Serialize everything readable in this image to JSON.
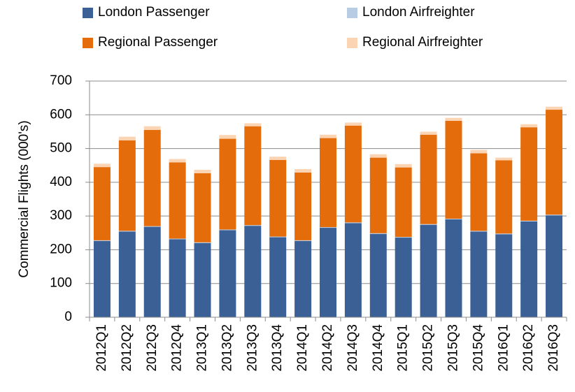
{
  "chart_data": {
    "type": "stacked_bar",
    "y_label": "Commercial Flights (000's)",
    "categories": [
      "2012Q1",
      "2012Q2",
      "2012Q3",
      "2012Q4",
      "2013Q1",
      "2013Q2",
      "2013Q3",
      "2013Q4",
      "2014Q1",
      "2014Q2",
      "2014Q3",
      "2014Q4",
      "2015Q1",
      "2015Q2",
      "2015Q3",
      "2015Q4",
      "2016Q1",
      "2016Q2",
      "2016Q3"
    ],
    "series": [
      {
        "name": "London Passenger",
        "color": "#3a6096",
        "values": [
          226,
          254,
          268,
          231,
          220,
          258,
          271,
          237,
          226,
          265,
          279,
          247,
          236,
          274,
          290,
          254,
          246,
          284,
          302
        ]
      },
      {
        "name": "London Airfreighter",
        "color": "#b8cce4",
        "values": [
          2,
          2,
          2,
          2,
          2,
          2,
          2,
          2,
          2,
          2,
          2,
          2,
          2,
          2,
          2,
          2,
          2,
          2,
          2
        ]
      },
      {
        "name": "Regional Passenger",
        "color": "#e46c0a",
        "values": [
          217,
          268,
          285,
          226,
          205,
          269,
          293,
          227,
          201,
          264,
          287,
          224,
          206,
          265,
          290,
          230,
          217,
          277,
          311
        ]
      },
      {
        "name": "Regional Airfreighter",
        "color": "#fbd4b4",
        "values": [
          10,
          11,
          11,
          10,
          10,
          11,
          9,
          10,
          10,
          10,
          9,
          10,
          10,
          9,
          9,
          10,
          8,
          9,
          9
        ]
      }
    ],
    "ylim": [
      0,
      700
    ],
    "yticks": [
      0,
      100,
      200,
      300,
      400,
      500,
      600,
      700
    ],
    "grid": true
  }
}
